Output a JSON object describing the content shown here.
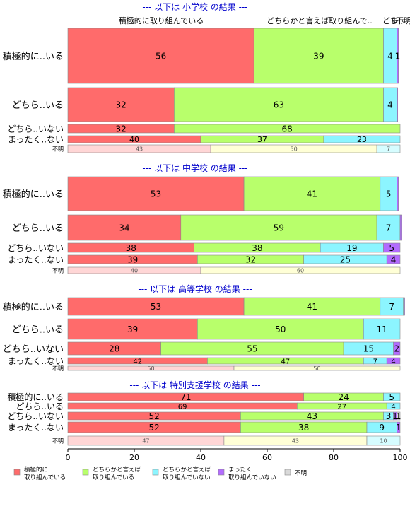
{
  "colors": {
    "active": "#FF6B6B",
    "somewhat_active": "#B8FF6B",
    "somewhat_not": "#8CF5FF",
    "not_at_all": "#B36BFF",
    "unknown": "#D9D9D9",
    "unknown_first": "#FFD6D6",
    "unknown_second": "#FFFFD6",
    "unknown_third": "#D6FDFF",
    "title": "#0000CC",
    "border": "#888888"
  },
  "header_labels": [
    "積極的に取り組んでいる",
    "どちらかと言えば取り組んで..",
    "どち",
    "まっ",
    "不明"
  ],
  "chart_data": {
    "type": "bar",
    "orientation": "horizontal",
    "stacked": "percent",
    "xlim": [
      0,
      100
    ],
    "xticks": [
      0,
      20,
      40,
      60,
      80,
      100
    ],
    "legend": {
      "placement": "bottom",
      "entries": [
        {
          "label": "積極的に\n取り組んでいる",
          "color": "#FF6B6B"
        },
        {
          "label": "どちらかと言えば\n取り組んでいる",
          "color": "#B8FF6B"
        },
        {
          "label": "どちらかと言えば\n取り組んでいない",
          "color": "#8CF5FF"
        },
        {
          "label": "まったく\n取り組んでいない",
          "color": "#B36BFF"
        },
        {
          "label": "不明",
          "color": "#D9D9D9"
        }
      ]
    },
    "panels": [
      {
        "title": "--- 以下は 小学校 の結果 ---",
        "rows": [
          {
            "label": "積極的に..いる",
            "values": [
              56,
              39,
              4,
              0.5
            ],
            "labels": [
              "56",
              "39",
              "4",
              "1"
            ]
          },
          {
            "label": "どちら..いる",
            "values": [
              32,
              63,
              4,
              0.3
            ],
            "labels": [
              "32",
              "63",
              "4",
              ""
            ]
          },
          {
            "label": "どちら..いない",
            "values": [
              32,
              68
            ],
            "labels": [
              "32",
              "68"
            ]
          },
          {
            "label": "まったく..ない",
            "values": [
              40,
              37,
              23
            ],
            "labels": [
              "40",
              "37",
              "23"
            ]
          },
          {
            "label": "不明",
            "values": [
              43,
              50,
              7
            ],
            "labels": [
              "43",
              "50",
              "7"
            ],
            "light": true
          }
        ]
      },
      {
        "title": "--- 以下は 中学校 の結果 ---",
        "rows": [
          {
            "label": "積極的に..いる",
            "values": [
              53,
              41,
              5,
              0.5
            ],
            "labels": [
              "53",
              "41",
              "5",
              ""
            ]
          },
          {
            "label": "どちら..いる",
            "values": [
              34,
              59,
              7,
              0.4
            ],
            "labels": [
              "34",
              "59",
              "7",
              ""
            ]
          },
          {
            "label": "どちら..いない",
            "values": [
              38,
              38,
              19,
              5
            ],
            "labels": [
              "38",
              "38",
              "19",
              "5"
            ]
          },
          {
            "label": "まったく..ない",
            "values": [
              39,
              32,
              25,
              4
            ],
            "labels": [
              "39",
              "32",
              "25",
              "4"
            ]
          },
          {
            "label": "不明",
            "values": [
              40,
              60
            ],
            "labels": [
              "40",
              "60"
            ],
            "light": true
          }
        ]
      },
      {
        "title": "--- 以下は 高等学校 の結果 ---",
        "rows": [
          {
            "label": "積極的に..いる",
            "values": [
              53,
              41,
              7,
              0.4
            ],
            "labels": [
              "53",
              "41",
              "7",
              ""
            ]
          },
          {
            "label": "どちら..いる",
            "values": [
              39,
              50,
              11
            ],
            "labels": [
              "39",
              "50",
              "11"
            ]
          },
          {
            "label": "どちら..いない",
            "values": [
              28,
              55,
              15,
              2
            ],
            "labels": [
              "28",
              "55",
              "15",
              "2"
            ]
          },
          {
            "label": "まったく..ない",
            "values": [
              42,
              47,
              7,
              4
            ],
            "labels": [
              "42",
              "47",
              "7",
              "4"
            ]
          },
          {
            "label": "不明",
            "values": [
              50,
              50
            ],
            "labels": [
              "50",
              "50"
            ],
            "light": true
          }
        ]
      },
      {
        "title": "--- 以下は 特別支援学校 の結果 ---",
        "rows": [
          {
            "label": "積極的に..いる",
            "values": [
              71,
              24,
              5
            ],
            "labels": [
              "71",
              "24",
              "5"
            ]
          },
          {
            "label": "どちら..いる",
            "values": [
              69,
              27,
              4
            ],
            "labels": [
              "69",
              "27",
              "4"
            ]
          },
          {
            "label": "どちら..いない",
            "values": [
              52,
              43,
              3,
              1,
              1
            ],
            "labels": [
              "52",
              "43",
              "3",
              "1",
              "1"
            ]
          },
          {
            "label": "まったく..ない",
            "values": [
              52,
              38,
              9,
              1
            ],
            "labels": [
              "52",
              "38",
              "9",
              "1"
            ]
          },
          {
            "label": "不明",
            "values": [
              47,
              43,
              10
            ],
            "labels": [
              "47",
              "43",
              "10"
            ],
            "light": true
          }
        ]
      }
    ]
  }
}
